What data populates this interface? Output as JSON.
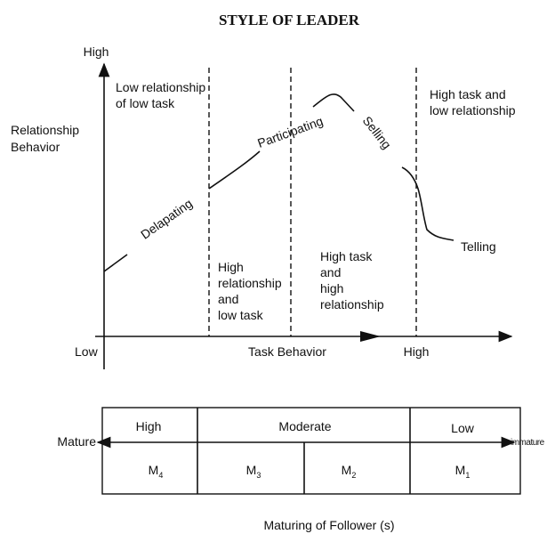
{
  "title": "STYLE OF LEADER",
  "y_axis": {
    "high": "High",
    "label": [
      "Relationship",
      "Behavior"
    ]
  },
  "x_axis": {
    "low": "Low",
    "label": "Task Behavior",
    "high": "High"
  },
  "quadrants": [
    [
      "Low relationship",
      "of low task"
    ],
    [
      "High",
      "relationship",
      "and",
      "low task"
    ],
    [
      "High task",
      "and",
      "high",
      "relationship"
    ],
    [
      "High task and",
      "low relationship"
    ]
  ],
  "curve_labels": [
    "Delapating",
    "Participating",
    "Selling",
    "Telling"
  ],
  "maturity": {
    "levels": [
      "High",
      "Moderate",
      "Low"
    ],
    "left": "Mature",
    "right": "immature",
    "cells": [
      {
        "base": "M",
        "sub": "4"
      },
      {
        "base": "M",
        "sub": "3"
      },
      {
        "base": "M",
        "sub": "2"
      },
      {
        "base": "M",
        "sub": "1"
      }
    ],
    "caption": "Maturing of Follower (s)"
  }
}
